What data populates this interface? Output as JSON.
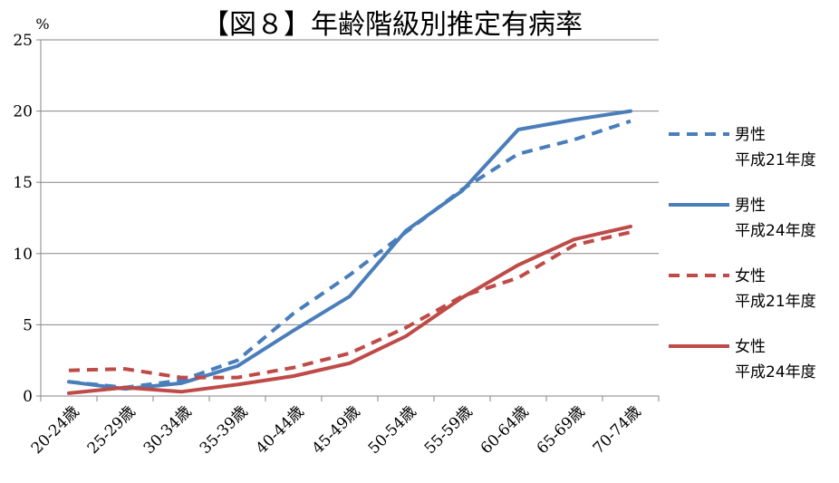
{
  "chart_data": {
    "type": "line",
    "title": "【図８】年齢階級別推定有病率",
    "y_unit": "%",
    "ylim": [
      0,
      25
    ],
    "y_ticks": [
      "0",
      "5",
      "10",
      "15",
      "20",
      "25"
    ],
    "categories": [
      "20-24歳",
      "25-29歳",
      "30-34歳",
      "35-39歳",
      "40-44歳",
      "45-49歳",
      "50-54歳",
      "55-59歳",
      "60-64歳",
      "65-69歳",
      "70-74歳"
    ],
    "grid": "horizontal",
    "legend_position": "right",
    "series": [
      {
        "name": "男性\n平成21年度",
        "name_lines": [
          "男性",
          "平成21年度"
        ],
        "color": "#4A7EBB",
        "dashed": true,
        "values": [
          1.0,
          0.6,
          1.1,
          2.5,
          5.8,
          8.5,
          11.5,
          14.5,
          17.0,
          18.0,
          19.3
        ]
      },
      {
        "name": "男性\n平成24年度",
        "name_lines": [
          "男性",
          "平成24年度"
        ],
        "color": "#4A7EBB",
        "dashed": false,
        "values": [
          1.0,
          0.5,
          0.9,
          2.1,
          4.6,
          7.0,
          11.6,
          14.4,
          18.7,
          19.4,
          20.0
        ]
      },
      {
        "name": "女性\n平成21年度",
        "name_lines": [
          "女性",
          "平成21年度"
        ],
        "color": "#BE4B48",
        "dashed": true,
        "values": [
          1.8,
          1.9,
          1.3,
          1.3,
          2.0,
          3.0,
          4.8,
          7.0,
          8.3,
          10.6,
          11.5
        ]
      },
      {
        "name": "女性\n平成24年度",
        "name_lines": [
          "女性",
          "平成24年度"
        ],
        "color": "#BE4B48",
        "dashed": false,
        "values": [
          0.2,
          0.6,
          0.3,
          0.8,
          1.4,
          2.3,
          4.2,
          6.9,
          9.2,
          11.0,
          11.9
        ]
      }
    ]
  }
}
